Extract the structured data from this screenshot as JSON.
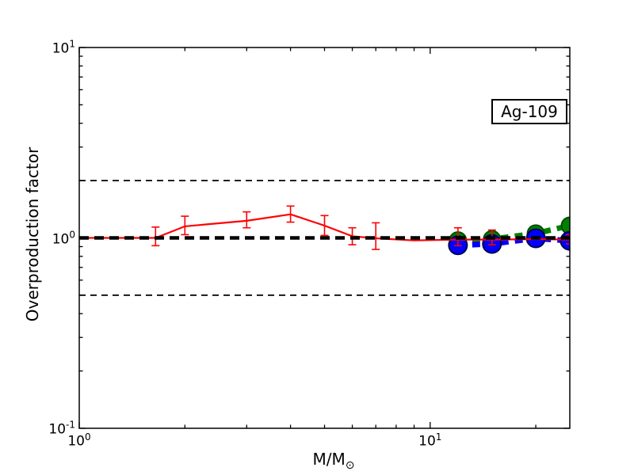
{
  "annotation": {
    "text": "Ag-109"
  },
  "axes": {
    "ylabel": "Overproduction factor",
    "xlabel_main": "M/M",
    "xlabel_sub": "⊙",
    "x_ticks": [
      {
        "base": "10",
        "exp": "0",
        "value": 1
      },
      {
        "base": "10",
        "exp": "1",
        "value": 10
      }
    ],
    "y_ticks": [
      {
        "base": "10",
        "exp": "-1",
        "value": 0.1
      },
      {
        "base": "10",
        "exp": "0",
        "value": 1
      },
      {
        "base": "10",
        "exp": "1",
        "value": 10
      }
    ],
    "x_minor_ticks": [
      2,
      3,
      4,
      5,
      6,
      7,
      8,
      9,
      20
    ],
    "y_minor_ticks": [
      0.2,
      0.3,
      0.4,
      0.5,
      0.6,
      0.7,
      0.8,
      0.9,
      2,
      3,
      4,
      5,
      6,
      7,
      8,
      9
    ]
  },
  "chart_data": {
    "type": "line",
    "title": "",
    "annotation": "Ag-109",
    "xlabel": "M/M_sun",
    "ylabel": "Overproduction factor",
    "x_scale": "log",
    "y_scale": "log",
    "xlim": [
      1,
      25
    ],
    "ylim": [
      0.1,
      10
    ],
    "grid": false,
    "legend": "none",
    "reference_lines": [
      {
        "y": 2.0,
        "color": "#000000",
        "style": "dashed",
        "weight": "thin"
      },
      {
        "y": 0.5,
        "color": "#000000",
        "style": "dashed",
        "weight": "thin"
      },
      {
        "y": 1.0,
        "color": "#000000",
        "style": "dashed",
        "weight": "thick"
      }
    ],
    "series": [
      {
        "name": "green-dashed-circles",
        "color": "#008000",
        "edge_color": "#004d00",
        "style": "dashed-thick",
        "marker": "circle",
        "marker_radius": 10.5,
        "x": [
          12,
          15,
          20,
          25
        ],
        "y": [
          0.97,
          0.985,
          1.055,
          1.16
        ]
      },
      {
        "name": "blue-dashed-circles",
        "color": "#0000ff",
        "edge_color": "#000050",
        "style": "dashed-thick",
        "marker": "circle",
        "marker_radius": 11.5,
        "x": [
          12,
          15,
          20,
          25
        ],
        "y": [
          0.915,
          0.93,
          0.995,
          0.965
        ]
      },
      {
        "name": "red-solid-errorbars",
        "color": "#ff0000",
        "style": "solid",
        "marker": "none",
        "x": [
          1,
          1.65,
          2,
          3,
          4,
          5,
          6,
          7,
          9,
          12,
          15,
          20,
          25
        ],
        "y": [
          1.0,
          1.0,
          1.15,
          1.23,
          1.33,
          1.16,
          1.02,
          0.995,
          0.97,
          0.98,
          0.98,
          0.985,
          0.98
        ],
        "err_lo": [
          null,
          0.91,
          1.04,
          1.13,
          1.21,
          1.03,
          0.92,
          0.87,
          null,
          0.91,
          0.92,
          null,
          0.93
        ],
        "err_hi": [
          null,
          1.14,
          1.3,
          1.37,
          1.47,
          1.31,
          1.13,
          1.2,
          null,
          1.13,
          1.1,
          null,
          1.04
        ]
      }
    ]
  }
}
